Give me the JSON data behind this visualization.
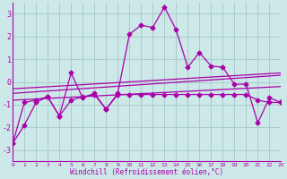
{
  "xlabel": "Windchill (Refroidissement éolien,°C)",
  "bg_color": "#cce8e8",
  "grid_color": "#aacccc",
  "line_color": "#aa00aa",
  "xlim": [
    0,
    23
  ],
  "ylim": [
    -3.5,
    3.5
  ],
  "xticks": [
    0,
    1,
    2,
    3,
    4,
    5,
    6,
    7,
    8,
    9,
    10,
    11,
    12,
    13,
    14,
    15,
    16,
    17,
    18,
    19,
    20,
    21,
    22,
    23
  ],
  "yticks": [
    -3,
    -2,
    -1,
    0,
    1,
    2,
    3
  ],
  "series1": [
    -2.7,
    -1.9,
    -0.9,
    -0.65,
    -1.5,
    0.4,
    -0.7,
    -0.5,
    -1.2,
    -0.5,
    2.1,
    2.5,
    2.4,
    3.3,
    2.3,
    0.65,
    1.3,
    0.7,
    0.65,
    -0.1,
    -0.1,
    -1.8,
    -0.7,
    -0.9
  ],
  "series2": [
    -2.7,
    -0.9,
    -0.8,
    -0.65,
    -1.5,
    -0.8,
    -0.65,
    -0.55,
    -1.2,
    -0.55,
    -0.55,
    -0.55,
    -0.55,
    -0.55,
    -0.55,
    -0.55,
    -0.55,
    -0.55,
    -0.55,
    -0.55,
    -0.55,
    -0.8,
    -0.9,
    -0.9
  ],
  "series3_x": [
    0,
    23
  ],
  "series3_y": [
    -0.8,
    -0.2
  ],
  "series4_x": [
    0,
    23
  ],
  "series4_y": [
    -0.5,
    0.3
  ],
  "series5_x": [
    0,
    23
  ],
  "series5_y": [
    -0.3,
    0.4
  ],
  "marker": "D",
  "markersize": 2.5,
  "linewidth": 0.9
}
